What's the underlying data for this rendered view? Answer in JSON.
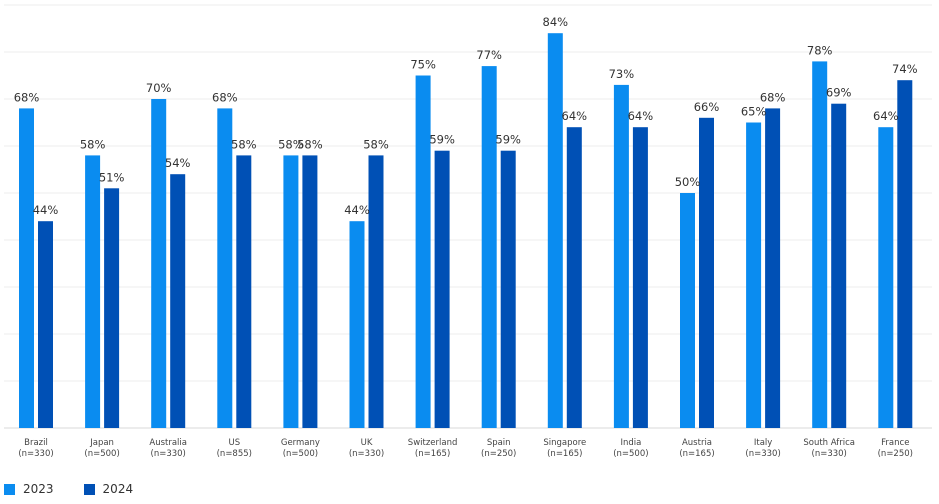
{
  "chart_data": {
    "type": "bar",
    "title": "",
    "xlabel": "",
    "ylabel": "",
    "ylim": [
      0,
      90
    ],
    "grid": true,
    "legend_position": "bottom-left",
    "categories": [
      {
        "name": "Brazil",
        "n": "(n=330)"
      },
      {
        "name": "Japan",
        "n": "(n=500)"
      },
      {
        "name": "Australia",
        "n": "(n=330)"
      },
      {
        "name": "US",
        "n": "(n=855)"
      },
      {
        "name": "Germany",
        "n": "(n=500)"
      },
      {
        "name": "UK",
        "n": "(n=330)"
      },
      {
        "name": "Switzerland",
        "n": "(n=165)"
      },
      {
        "name": "Spain",
        "n": "(n=250)"
      },
      {
        "name": "Singapore",
        "n": "(n=165)"
      },
      {
        "name": "India",
        "n": "(n=500)"
      },
      {
        "name": "Austria",
        "n": "(n=165)"
      },
      {
        "name": "Italy",
        "n": "(n=330)"
      },
      {
        "name": "South Africa",
        "n": "(n=330)"
      },
      {
        "name": "France",
        "n": "(n=250)"
      }
    ],
    "series": [
      {
        "name": "2023",
        "color": "#0a8cf0",
        "values": [
          68,
          58,
          70,
          68,
          58,
          44,
          75,
          77,
          84,
          73,
          50,
          65,
          78,
          64
        ]
      },
      {
        "name": "2024",
        "color": "#0050b5",
        "values": [
          44,
          51,
          54,
          58,
          58,
          58,
          59,
          59,
          64,
          64,
          66,
          68,
          69,
          74
        ]
      }
    ],
    "value_suffix": "%"
  }
}
